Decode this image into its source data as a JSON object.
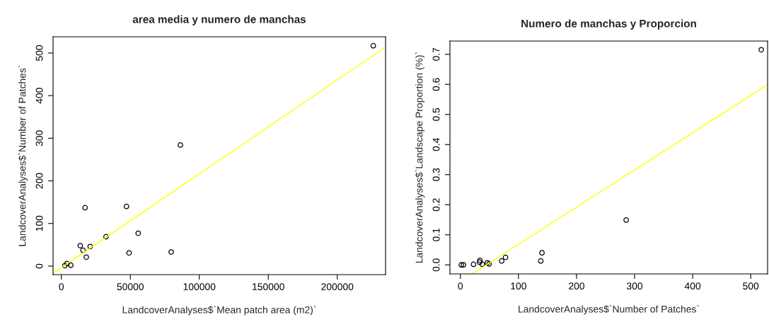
{
  "chart_data": [
    {
      "type": "scatter",
      "title": "area media y numero de manchas",
      "xlabel": "LandcoverAnalyses$`Mean patch area (m2)`",
      "ylabel": "LandcoverAnalyses$`Number of Patches`",
      "grid": false,
      "legend": false,
      "xlim": [
        -6000,
        235000
      ],
      "xticks": [
        0,
        50000,
        100000,
        150000,
        200000
      ],
      "ylim": [
        -20,
        538
      ],
      "yticks": [
        0,
        100,
        200,
        300,
        400,
        500
      ],
      "series": [
        {
          "marker": "circle",
          "color": "#000000",
          "x": [
            2600,
            4100,
            6850,
            13700,
            15700,
            17200,
            18100,
            20900,
            32400,
            47200,
            49100,
            55700,
            79600,
            86300,
            226100
          ],
          "values": [
            1,
            6,
            2,
            48,
            37,
            137,
            21,
            46,
            69,
            140,
            31,
            77,
            33,
            284,
            517
          ]
        },
        {
          "type": "line",
          "color": "#ffff00",
          "x": [
            -6000,
            235000
          ],
          "values": [
            -17,
            514
          ]
        }
      ]
    },
    {
      "type": "scatter",
      "title": "Numero de manchas y Proporcion",
      "xlabel": "LandcoverAnalyses$`Number of Patches`",
      "ylabel": "LandcoverAnalyses$`Landscape Proportion (%)`",
      "grid": false,
      "legend": false,
      "xlim": [
        -18,
        529
      ],
      "xticks": [
        0,
        100,
        200,
        300,
        400,
        500
      ],
      "ylim": [
        -0.03,
        0.744
      ],
      "yticks": [
        {
          "value": 0,
          "label": "0.0"
        },
        0.1,
        0.2,
        0.3,
        0.4,
        0.5,
        0.6,
        0.7
      ],
      "series": [
        {
          "marker": "circle",
          "color": "#000000",
          "x": [
            1.6,
            5.3,
            22.6,
            32.9,
            33.7,
            37.8,
            46.4,
            49.3,
            71.1,
            77.7,
            138.5,
            140.5,
            285.5,
            518.1
          ],
          "values": [
            0.0,
            0.0,
            0.002,
            0.009,
            0.015,
            0.002,
            0.007,
            0.003,
            0.013,
            0.025,
            0.013,
            0.04,
            0.149,
            0.715
          ]
        },
        {
          "type": "line",
          "color": "#ffff00",
          "x": [
            20.5,
            529
          ],
          "values": [
            -0.03,
            0.599
          ]
        }
      ]
    }
  ]
}
